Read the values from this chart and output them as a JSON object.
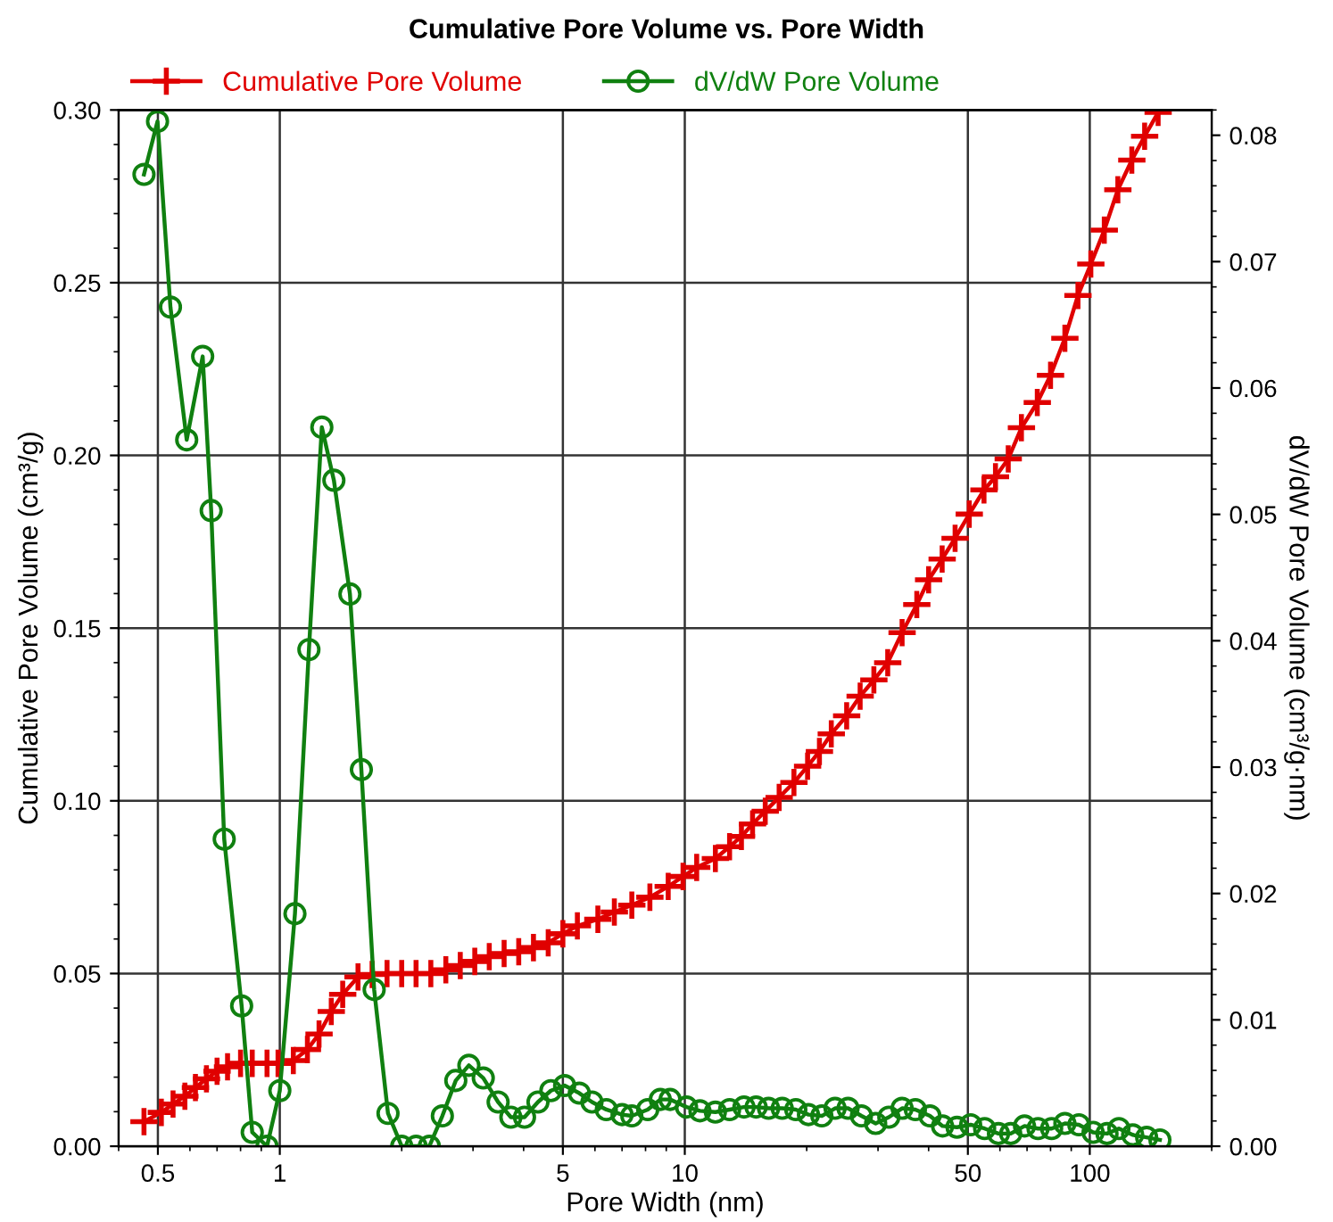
{
  "chart_data": {
    "type": "line",
    "title": "Cumulative Pore Volume vs. Pore Width",
    "xlabel": "Pore Width (nm)",
    "ylabel": "Cumulative Pore Volume (cm³/g)",
    "y2label": "dV/dW Pore Volume (cm³/g·nm)",
    "log": "x",
    "grid": true,
    "legend": "top",
    "line_style": "solid",
    "xlim": [
      0.4,
      200
    ],
    "xticks": [
      0.5,
      1,
      5,
      10,
      50,
      100
    ],
    "ylim": [
      0,
      0.3
    ],
    "yticks": [
      {
        "value": 0,
        "label": "0.00"
      },
      {
        "value": 0.05,
        "label": "0.05"
      },
      {
        "value": 0.1,
        "label": "0.10"
      },
      {
        "value": 0.15,
        "label": "0.15"
      },
      {
        "value": 0.2,
        "label": "0.20"
      },
      {
        "value": 0.25,
        "label": "0.25"
      },
      {
        "value": 0.3,
        "label": "0.30"
      }
    ],
    "y2lim": [
      0,
      0.082
    ],
    "y2ticks": [
      {
        "value": 0,
        "label": "0.00"
      },
      {
        "value": 0.01,
        "label": "0.01"
      },
      {
        "value": 0.02,
        "label": "0.02"
      },
      {
        "value": 0.03,
        "label": "0.03"
      },
      {
        "value": 0.04,
        "label": "0.04"
      },
      {
        "value": 0.05,
        "label": "0.05"
      },
      {
        "value": 0.06,
        "label": "0.06"
      },
      {
        "value": 0.07,
        "label": "0.07"
      },
      {
        "value": 0.08,
        "label": "0.08"
      }
    ],
    "series": [
      {
        "name": "Cumulative Pore Volume",
        "color": "#e00000",
        "marker": "cross",
        "x": [
          0.462,
          0.51,
          0.545,
          0.583,
          0.619,
          0.659,
          0.7,
          0.743,
          0.8,
          0.855,
          0.93,
          0.99,
          1.08,
          1.17,
          1.25,
          1.34,
          1.43,
          1.56,
          1.69,
          1.84,
          2.0,
          2.17,
          2.36,
          2.57,
          2.79,
          3.03,
          3.29,
          3.58,
          3.89,
          4.23,
          4.6,
          5.0,
          5.43,
          6.1,
          6.7,
          7.4,
          8.2,
          9.1,
          9.9,
          10.7,
          11.9,
          12.9,
          13.8,
          14.7,
          15.8,
          17.1,
          18.6,
          20.1,
          21.5,
          23,
          25.1,
          27.1,
          29.3,
          31.7,
          34.4,
          37.4,
          40,
          43.2,
          46.5,
          50.4,
          54.8,
          58.5,
          62.9,
          67.8,
          74.2,
          80,
          86.8,
          93.5,
          100.6,
          108.6,
          117.3,
          127,
          136.6,
          147.5
        ],
        "values": [
          0.0071,
          0.0098,
          0.0122,
          0.0145,
          0.017,
          0.0195,
          0.0217,
          0.023,
          0.024,
          0.024,
          0.024,
          0.024,
          0.0248,
          0.028,
          0.0325,
          0.039,
          0.044,
          0.049,
          0.0497,
          0.05,
          0.05,
          0.05,
          0.05,
          0.0511,
          0.0523,
          0.0535,
          0.0549,
          0.0558,
          0.0563,
          0.0575,
          0.0589,
          0.0615,
          0.0638,
          0.0657,
          0.0678,
          0.0698,
          0.0721,
          0.0752,
          0.0781,
          0.0807,
          0.0833,
          0.0867,
          0.0897,
          0.0933,
          0.097,
          0.101,
          0.1053,
          0.11,
          0.1143,
          0.1194,
          0.1246,
          0.1303,
          0.135,
          0.14,
          0.1487,
          0.1568,
          0.164,
          0.17,
          0.176,
          0.183,
          0.19,
          0.1938,
          0.199,
          0.208,
          0.2153,
          0.2232,
          0.2339,
          0.2463,
          0.2554,
          0.2652,
          0.2769,
          0.2855,
          0.2924,
          0.2993
        ]
      },
      {
        "name": "dV/dW Pore Volume",
        "color": "#108010",
        "marker": "circle",
        "axis": "y2",
        "x": [
          0.462,
          0.499,
          0.537,
          0.589,
          0.645,
          0.677,
          0.729,
          0.805,
          0.855,
          0.93,
          1.0,
          1.09,
          1.18,
          1.27,
          1.36,
          1.49,
          1.59,
          1.71,
          1.85,
          2.0,
          2.17,
          2.34,
          2.52,
          2.72,
          2.93,
          3.18,
          3.46,
          3.72,
          4.02,
          4.34,
          4.67,
          5.05,
          5.49,
          5.9,
          6.4,
          7.0,
          7.4,
          8.1,
          8.7,
          9.2,
          10.1,
          10.9,
          11.9,
          12.9,
          14.0,
          15.0,
          16.1,
          17.4,
          18.8,
          20.2,
          21.8,
          23.5,
          25.3,
          27.3,
          29.6,
          31.9,
          34.4,
          37.1,
          40.3,
          43.3,
          47,
          50.8,
          55,
          59.5,
          63.8,
          69,
          74.5,
          80.5,
          86.8,
          94,
          101.9,
          110.3,
          118,
          127.6,
          138.2,
          149
        ],
        "values": [
          0.0769,
          0.0811,
          0.0664,
          0.0559,
          0.0625,
          0.0503,
          0.0243,
          0.0111,
          0.0011,
          0.0,
          0.0044,
          0.0184,
          0.0393,
          0.0569,
          0.0527,
          0.0437,
          0.0298,
          0.0124,
          0.0026,
          0,
          0,
          0,
          0.0024,
          0.0052,
          0.0064,
          0.0054,
          0.0035,
          0.0023,
          0.0023,
          0.0035,
          0.0044,
          0.0048,
          0.0042,
          0.0035,
          0.0029,
          0.0025,
          0.0024,
          0.0029,
          0.0037,
          0.0037,
          0.0031,
          0.0028,
          0.0027,
          0.0029,
          0.0031,
          0.0031,
          0.003,
          0.003,
          0.0029,
          0.0025,
          0.0024,
          0.003,
          0.003,
          0.0024,
          0.0018,
          0.0023,
          0.003,
          0.0029,
          0.0024,
          0.0016,
          0.0015,
          0.0017,
          0.0014,
          0.001,
          0.001,
          0.0016,
          0.0014,
          0.0014,
          0.0018,
          0.0017,
          0.0011,
          0.001,
          0.0014,
          0.0009,
          0.0007,
          0.0005
        ]
      }
    ]
  }
}
